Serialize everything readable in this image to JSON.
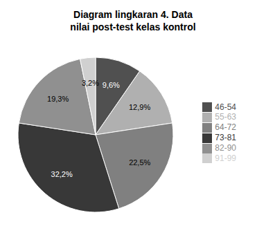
{
  "chart_data": {
    "type": "pie",
    "title": "Diagram lingkaran 4. Data\nnilai post-test kelas kontrol",
    "categories": [
      "46-54",
      "55-63",
      "64-72",
      "73-81",
      "82-90",
      "91-99"
    ],
    "values": [
      9.6,
      12.9,
      22.5,
      32.2,
      19.3,
      3.2
    ],
    "value_labels": [
      "9,6%",
      "12,9%",
      "22,5%",
      "32,2%",
      "19,3%",
      "3,2%"
    ],
    "colors": [
      "#505050",
      "#b0b0b0",
      "#808080",
      "#383838",
      "#909090",
      "#d0d0d0"
    ],
    "data_labels": true,
    "legend": "right"
  }
}
